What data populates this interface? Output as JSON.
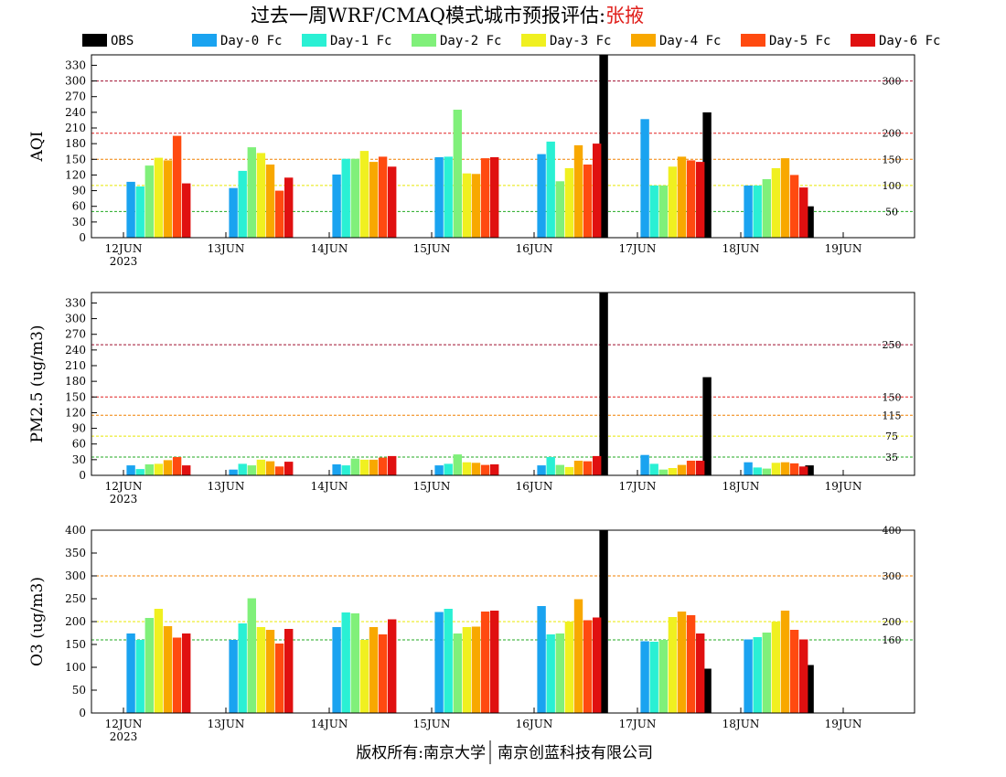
{
  "header": {
    "title": "过去一周WRF/CMAQ模式城市预报评估:",
    "city": "张掖",
    "city_color": "#e0201c"
  },
  "footer": {
    "left": "版权所有:南京大学",
    "right": "南京创蓝科技有限公司"
  },
  "legend": [
    {
      "name": "OBS",
      "color": "#000000"
    },
    {
      "name": "Day-0 Fc",
      "color": "#1aa3f0"
    },
    {
      "name": "Day-1 Fc",
      "color": "#2af0d4"
    },
    {
      "name": "Day-2 Fc",
      "color": "#80f07a"
    },
    {
      "name": "Day-3 Fc",
      "color": "#f0f020"
    },
    {
      "name": "Day-4 Fc",
      "color": "#f8a800"
    },
    {
      "name": "Day-5 Fc",
      "color": "#ff4a10"
    },
    {
      "name": "Day-6 Fc",
      "color": "#e01010"
    }
  ],
  "chart_data": [
    {
      "type": "bar",
      "ylabel": "AQI",
      "ylim": [
        0,
        350
      ],
      "yticks": [
        0,
        30,
        60,
        90,
        120,
        150,
        180,
        210,
        240,
        270,
        300,
        330
      ],
      "categories": [
        "12JUN",
        "13JUN",
        "14JUN",
        "15JUN",
        "16JUN",
        "17JUN",
        "18JUN",
        "19JUN"
      ],
      "first_year": "2023",
      "reference_lines": [
        {
          "value": 50,
          "label": "50",
          "color": "#22aa22"
        },
        {
          "value": 100,
          "label": "100",
          "color": "#e8e800"
        },
        {
          "value": 150,
          "label": "150",
          "color": "#f08000"
        },
        {
          "value": 200,
          "label": "200",
          "color": "#e02020"
        },
        {
          "value": 300,
          "label": "300",
          "color": "#a01030"
        }
      ],
      "series": [
        {
          "name": "OBS",
          "values": [
            null,
            null,
            null,
            null,
            null,
            350,
            240,
            60
          ]
        },
        {
          "name": "Day-0 Fc",
          "values": [
            107,
            95,
            121,
            154,
            160,
            227,
            100,
            null
          ]
        },
        {
          "name": "Day-1 Fc",
          "values": [
            98,
            128,
            151,
            155,
            184,
            100,
            100,
            null
          ]
        },
        {
          "name": "Day-2 Fc",
          "values": [
            138,
            173,
            151,
            245,
            108,
            100,
            112,
            null
          ]
        },
        {
          "name": "Day-3 Fc",
          "values": [
            153,
            162,
            166,
            123,
            133,
            136,
            133,
            null
          ]
        },
        {
          "name": "Day-4 Fc",
          "values": [
            148,
            140,
            145,
            122,
            177,
            155,
            152,
            null
          ]
        },
        {
          "name": "Day-5 Fc",
          "values": [
            195,
            90,
            155,
            152,
            140,
            148,
            120,
            null
          ]
        },
        {
          "name": "Day-6 Fc",
          "values": [
            104,
            115,
            136,
            154,
            180,
            145,
            96,
            null
          ]
        }
      ]
    },
    {
      "type": "bar",
      "ylabel": "PM2.5 (ug/m3)",
      "ylim": [
        0,
        350
      ],
      "yticks": [
        0,
        30,
        60,
        90,
        120,
        150,
        180,
        210,
        240,
        270,
        300,
        330
      ],
      "categories": [
        "12JUN",
        "13JUN",
        "14JUN",
        "15JUN",
        "16JUN",
        "17JUN",
        "18JUN",
        "19JUN"
      ],
      "first_year": "2023",
      "reference_lines": [
        {
          "value": 35,
          "label": "35",
          "color": "#22aa22"
        },
        {
          "value": 75,
          "label": "75",
          "color": "#e8e800"
        },
        {
          "value": 115,
          "label": "115",
          "color": "#f08000"
        },
        {
          "value": 150,
          "label": "150",
          "color": "#e02020"
        },
        {
          "value": 250,
          "label": "250",
          "color": "#a01030"
        }
      ],
      "series": [
        {
          "name": "OBS",
          "values": [
            null,
            null,
            null,
            null,
            null,
            350,
            188,
            19
          ]
        },
        {
          "name": "Day-0 Fc",
          "values": [
            19,
            11,
            21,
            19,
            19,
            39,
            25,
            null
          ]
        },
        {
          "name": "Day-1 Fc",
          "values": [
            12,
            22,
            19,
            22,
            35,
            22,
            15,
            null
          ]
        },
        {
          "name": "Day-2 Fc",
          "values": [
            21,
            19,
            32,
            40,
            20,
            11,
            13,
            null
          ]
        },
        {
          "name": "Day-3 Fc",
          "values": [
            22,
            30,
            30,
            25,
            16,
            14,
            24,
            null
          ]
        },
        {
          "name": "Day-4 Fc",
          "values": [
            29,
            27,
            30,
            24,
            28,
            20,
            25,
            null
          ]
        },
        {
          "name": "Day-5 Fc",
          "values": [
            35,
            17,
            34,
            20,
            27,
            28,
            23,
            null
          ]
        },
        {
          "name": "Day-6 Fc",
          "values": [
            19,
            26,
            37,
            21,
            37,
            28,
            17,
            null
          ]
        }
      ]
    },
    {
      "type": "bar",
      "ylabel": "O3 (ug/m3)",
      "ylim": [
        0,
        400
      ],
      "yticks": [
        0,
        50,
        100,
        150,
        200,
        250,
        300,
        350,
        400
      ],
      "categories": [
        "12JUN",
        "13JUN",
        "14JUN",
        "15JUN",
        "16JUN",
        "17JUN",
        "18JUN",
        "19JUN"
      ],
      "first_year": "2023",
      "reference_lines": [
        {
          "value": 160,
          "label": "160",
          "color": "#22aa22"
        },
        {
          "value": 200,
          "label": "200",
          "color": "#e8e800"
        },
        {
          "value": 300,
          "label": "300",
          "color": "#f08000"
        },
        {
          "value": 400,
          "label": "400",
          "color": "#e02020"
        }
      ],
      "series": [
        {
          "name": "OBS",
          "values": [
            null,
            null,
            null,
            null,
            null,
            400,
            97,
            105
          ]
        },
        {
          "name": "Day-0 Fc",
          "values": [
            174,
            160,
            188,
            221,
            234,
            157,
            161,
            null
          ]
        },
        {
          "name": "Day-1 Fc",
          "values": [
            160,
            196,
            220,
            228,
            172,
            156,
            166,
            null
          ]
        },
        {
          "name": "Day-2 Fc",
          "values": [
            208,
            251,
            218,
            174,
            174,
            160,
            176,
            null
          ]
        },
        {
          "name": "Day-3 Fc",
          "values": [
            228,
            188,
            160,
            188,
            200,
            210,
            200,
            null
          ]
        },
        {
          "name": "Day-4 Fc",
          "values": [
            190,
            182,
            188,
            189,
            249,
            222,
            224,
            null
          ]
        },
        {
          "name": "Day-5 Fc",
          "values": [
            165,
            152,
            172,
            222,
            203,
            214,
            182,
            null
          ]
        },
        {
          "name": "Day-6 Fc",
          "values": [
            174,
            184,
            205,
            224,
            209,
            174,
            161,
            null
          ]
        }
      ]
    }
  ]
}
